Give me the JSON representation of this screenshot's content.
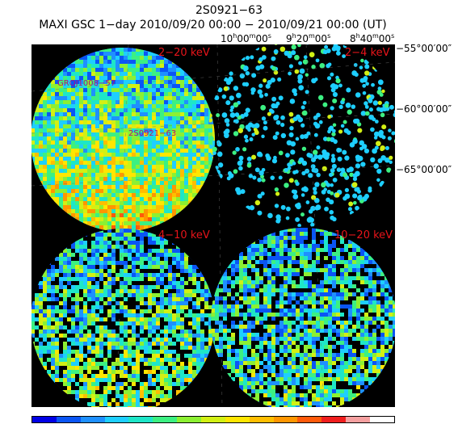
{
  "header": {
    "source_name": "2S0921−63",
    "observation": "MAXI GSC 1−day 2010/09/20 00:00 − 2010/09/21 00:00 (UT)"
  },
  "ra_ticks": [
    {
      "h": "10",
      "m": "00",
      "s": "00"
    },
    {
      "h": "9",
      "m": "20",
      "s": "00"
    },
    {
      "h": "8",
      "m": "40",
      "s": "00"
    }
  ],
  "dec_ticks": [
    {
      "d": "−55",
      "m": "00",
      "s": "00"
    },
    {
      "d": "−60",
      "m": "00",
      "s": "00"
    },
    {
      "d": "−65",
      "m": "00",
      "s": "00"
    }
  ],
  "panels": [
    {
      "band": "2−20 keV",
      "sources": [
        "GROJ1008−57",
        "2S0921−63"
      ]
    },
    {
      "band": "2−4 keV"
    },
    {
      "band": "4−10 keV"
    },
    {
      "band": "10−20 keV"
    }
  ],
  "colorbar": [
    "#0000e6",
    "#0a55f5",
    "#1e90ff",
    "#1ecfff",
    "#1ee6c8",
    "#3cf082",
    "#8cf032",
    "#d2f014",
    "#ffe600",
    "#ffbe00",
    "#ff9600",
    "#ff5a0a",
    "#f01e1e",
    "#f5a0a0",
    "#ffffff"
  ]
}
